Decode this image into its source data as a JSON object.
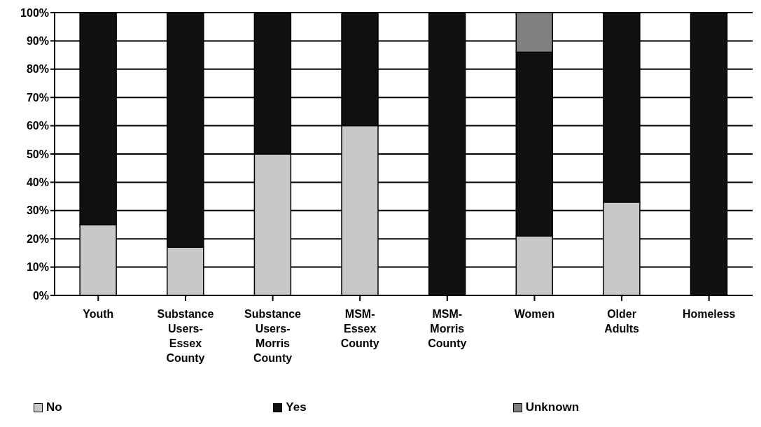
{
  "chart_data": {
    "type": "bar",
    "stacked": true,
    "categories": [
      "Youth",
      "Substance Users-Essex County",
      "Substance Users-Morris County",
      "MSM-Essex County",
      "MSM-Morris County",
      "Women",
      "Older Adults",
      "Homeless"
    ],
    "series": [
      {
        "name": "No",
        "color": "#c8c8c8",
        "values": [
          25,
          17,
          50,
          60,
          0,
          21,
          33,
          0
        ]
      },
      {
        "name": "Yes",
        "color": "#111111",
        "values": [
          75,
          83,
          50,
          40,
          100,
          65,
          67,
          100
        ]
      },
      {
        "name": "Unknown",
        "color": "#808080",
        "values": [
          0,
          0,
          0,
          0,
          0,
          14,
          0,
          0
        ]
      }
    ],
    "ylim": [
      0,
      100
    ],
    "yticks": [
      {
        "value": 0,
        "label": "0%"
      },
      {
        "value": 10,
        "label": "10%"
      },
      {
        "value": 20,
        "label": "20%"
      },
      {
        "value": 30,
        "label": "30%"
      },
      {
        "value": 40,
        "label": "40%"
      },
      {
        "value": 50,
        "label": "50%"
      },
      {
        "value": 60,
        "label": "60%"
      },
      {
        "value": 70,
        "label": "70%"
      },
      {
        "value": 80,
        "label": "80%"
      },
      {
        "value": 90,
        "label": "90%"
      },
      {
        "value": 100,
        "label": "100%"
      }
    ],
    "grid": "y",
    "legend": "bottom"
  }
}
